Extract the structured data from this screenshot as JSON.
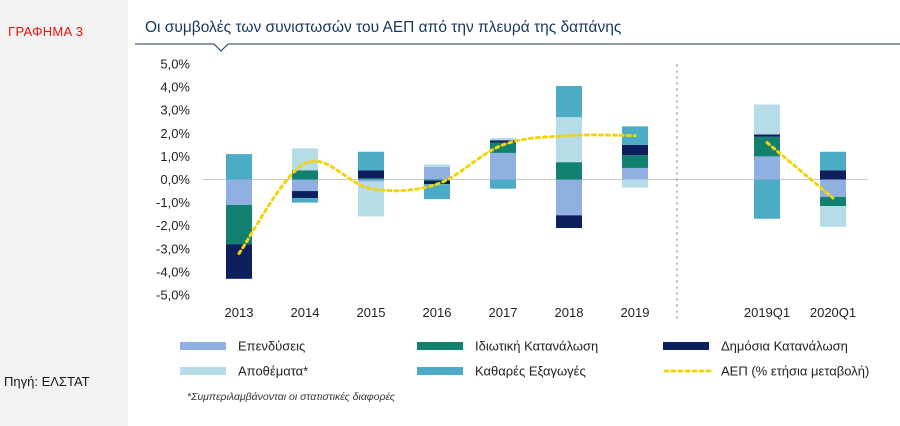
{
  "side_label": "ΓΡΑΦΗΜΑ 3",
  "source": "Πηγή: ΕΛΣΤΑΤ",
  "footnote": "*Συμπεριλαμβάνονται οι στατιστικές διαφορές",
  "colors": {
    "investment": "#8fb0e0",
    "private": "#12806f",
    "public": "#0d1f5c",
    "inventories": "#b6dde7",
    "netexports": "#4cacc6",
    "gdp": "#f2d40c",
    "sideLabel": "#e8130c",
    "title": "#17365d"
  },
  "chart_data": {
    "type": "bar",
    "stacked": true,
    "title": "Οι συμβολές των συνιστωσών του ΑΕΠ από την πλευρά της δαπάνης",
    "categories": [
      "2013",
      "2014",
      "2015",
      "2016",
      "2017",
      "2018",
      "2019",
      "2019Q1",
      "2020Q1"
    ],
    "ylim": [
      -5,
      5
    ],
    "yticks": [
      "5,0%",
      "4,0%",
      "3,0%",
      "2,0%",
      "1,0%",
      "0,0%",
      "-1,0%",
      "-2,0%",
      "-3,0%",
      "-4,0%",
      "-5,0%"
    ],
    "series": [
      {
        "key": "investment",
        "name": "Επενδύσεις",
        "values": [
          -1.1,
          -0.5,
          -0.1,
          0.55,
          1.15,
          -1.55,
          0.5,
          1.0,
          -0.75
        ]
      },
      {
        "key": "private",
        "name": "Ιδιωτική Κατανάλωση",
        "values": [
          -1.7,
          0.4,
          0.05,
          -0.05,
          0.45,
          0.75,
          0.55,
          0.85,
          -0.4
        ]
      },
      {
        "key": "public",
        "name": "Δημόσια Κατανάλωση",
        "values": [
          -1.5,
          -0.3,
          0.35,
          -0.15,
          0.1,
          -0.55,
          0.45,
          0.1,
          0.4
        ]
      },
      {
        "key": "inventories",
        "name": "Αποθέματα*",
        "values": [
          0,
          0.95,
          -1.5,
          0.1,
          0.1,
          1.95,
          -0.35,
          1.3,
          -0.9
        ]
      },
      {
        "key": "netexports",
        "name": "Καθαρές Εξαγωγές",
        "values": [
          1.1,
          -0.2,
          0.8,
          -0.65,
          -0.4,
          1.35,
          0.8,
          -1.7,
          0.8
        ]
      }
    ],
    "gdp": {
      "name": "ΑΕΠ (% ετήσια μεταβολή)",
      "values": [
        -3.2,
        0.7,
        -0.4,
        -0.2,
        1.5,
        1.9,
        1.9,
        1.6,
        -0.8
      ]
    },
    "legend": [
      [
        "Επενδύσεις",
        "Ιδιωτική Κατανάλωση",
        "Δημόσια Κατανάλωση"
      ],
      [
        "Αποθέματα*",
        "Καθαρές Εξαγωγές",
        "ΑΕΠ (% ετήσια μεταβολή)"
      ]
    ]
  }
}
